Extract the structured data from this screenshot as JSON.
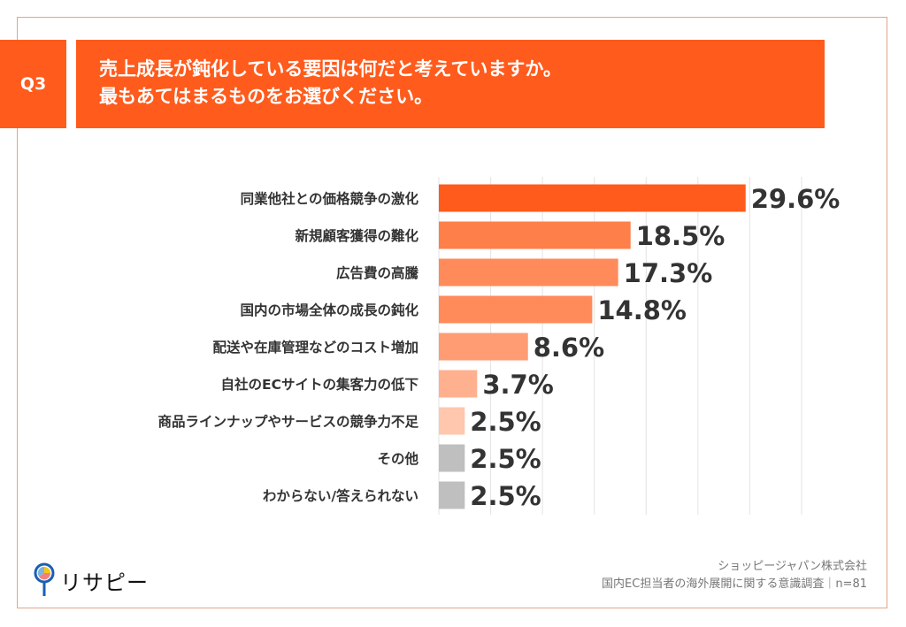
{
  "header": {
    "question": "Q3",
    "title_lines": [
      "売上成長が鈍化している要因は何だと考えていますか。",
      "最もあてはまるものをお選びください。"
    ]
  },
  "chart_data": {
    "type": "bar",
    "orientation": "horizontal",
    "categories": [
      "同業他社との価格競争の激化",
      "新規顧客獲得の難化",
      "広告費の高騰",
      "国内の市場全体の成長の鈍化",
      "配送や在庫管理などのコスト増加",
      "自社のECサイトの集客力の低下",
      "商品ラインナップやサービスの競争力不足",
      "その他",
      "わからない/答えられない"
    ],
    "values": [
      29.6,
      18.5,
      17.3,
      14.8,
      8.6,
      3.7,
      2.5,
      2.5,
      2.5
    ],
    "data_labels": [
      "29.6%",
      "18.5%",
      "17.3%",
      "14.8%",
      "8.6%",
      "3.7%",
      "2.5%",
      "2.5%",
      "2.5%"
    ],
    "colors": [
      "#FF5B1C",
      "#FF7F4A",
      "#FF8A5A",
      "#FF8A5A",
      "#FF9C74",
      "#FFB08F",
      "#FFC7AE",
      "#BFBFBF",
      "#BFBFBF"
    ],
    "xlim": [
      0,
      35
    ],
    "grid": true,
    "gridline_step": 5
  },
  "footer": {
    "brand": "リサピー",
    "company": "ショッピージャパン株式会社",
    "survey": "国内EC担当者の海外展開に関する意識調査｜n=81"
  }
}
